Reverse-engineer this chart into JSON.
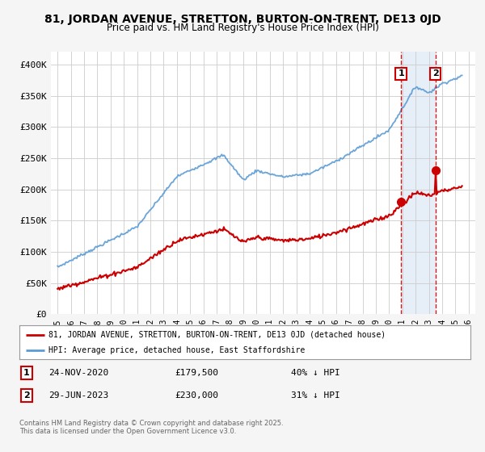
{
  "title": "81, JORDAN AVENUE, STRETTON, BURTON-ON-TRENT, DE13 0JD",
  "subtitle": "Price paid vs. HM Land Registry's House Price Index (HPI)",
  "hpi_color": "#5b9bd5",
  "price_color": "#cc0000",
  "bg_color": "#f5f5f5",
  "plot_bg": "#ffffff",
  "grid_color": "#cccccc",
  "shade_color": "#dce8f5",
  "ylim": [
    0,
    420000
  ],
  "yticks": [
    0,
    50000,
    100000,
    150000,
    200000,
    250000,
    300000,
    350000,
    400000
  ],
  "ytick_labels": [
    "£0",
    "£50K",
    "£100K",
    "£150K",
    "£200K",
    "£250K",
    "£300K",
    "£350K",
    "£400K"
  ],
  "legend_label1": "81, JORDAN AVENUE, STRETTON, BURTON-ON-TRENT, DE13 0JD (detached house)",
  "legend_label2": "HPI: Average price, detached house, East Staffordshire",
  "annotation1_label": "1",
  "annotation1_date": "24-NOV-2020",
  "annotation1_price": "£179,500",
  "annotation1_pct": "40% ↓ HPI",
  "annotation2_label": "2",
  "annotation2_date": "29-JUN-2023",
  "annotation2_price": "£230,000",
  "annotation2_pct": "31% ↓ HPI",
  "copyright": "Contains HM Land Registry data © Crown copyright and database right 2025.\nThis data is licensed under the Open Government Licence v3.0.",
  "sale1_x": 2020.9,
  "sale1_y": 179500,
  "sale2_x": 2023.5,
  "sale2_y": 230000,
  "xmin": 1994.5,
  "xmax": 2026.5
}
